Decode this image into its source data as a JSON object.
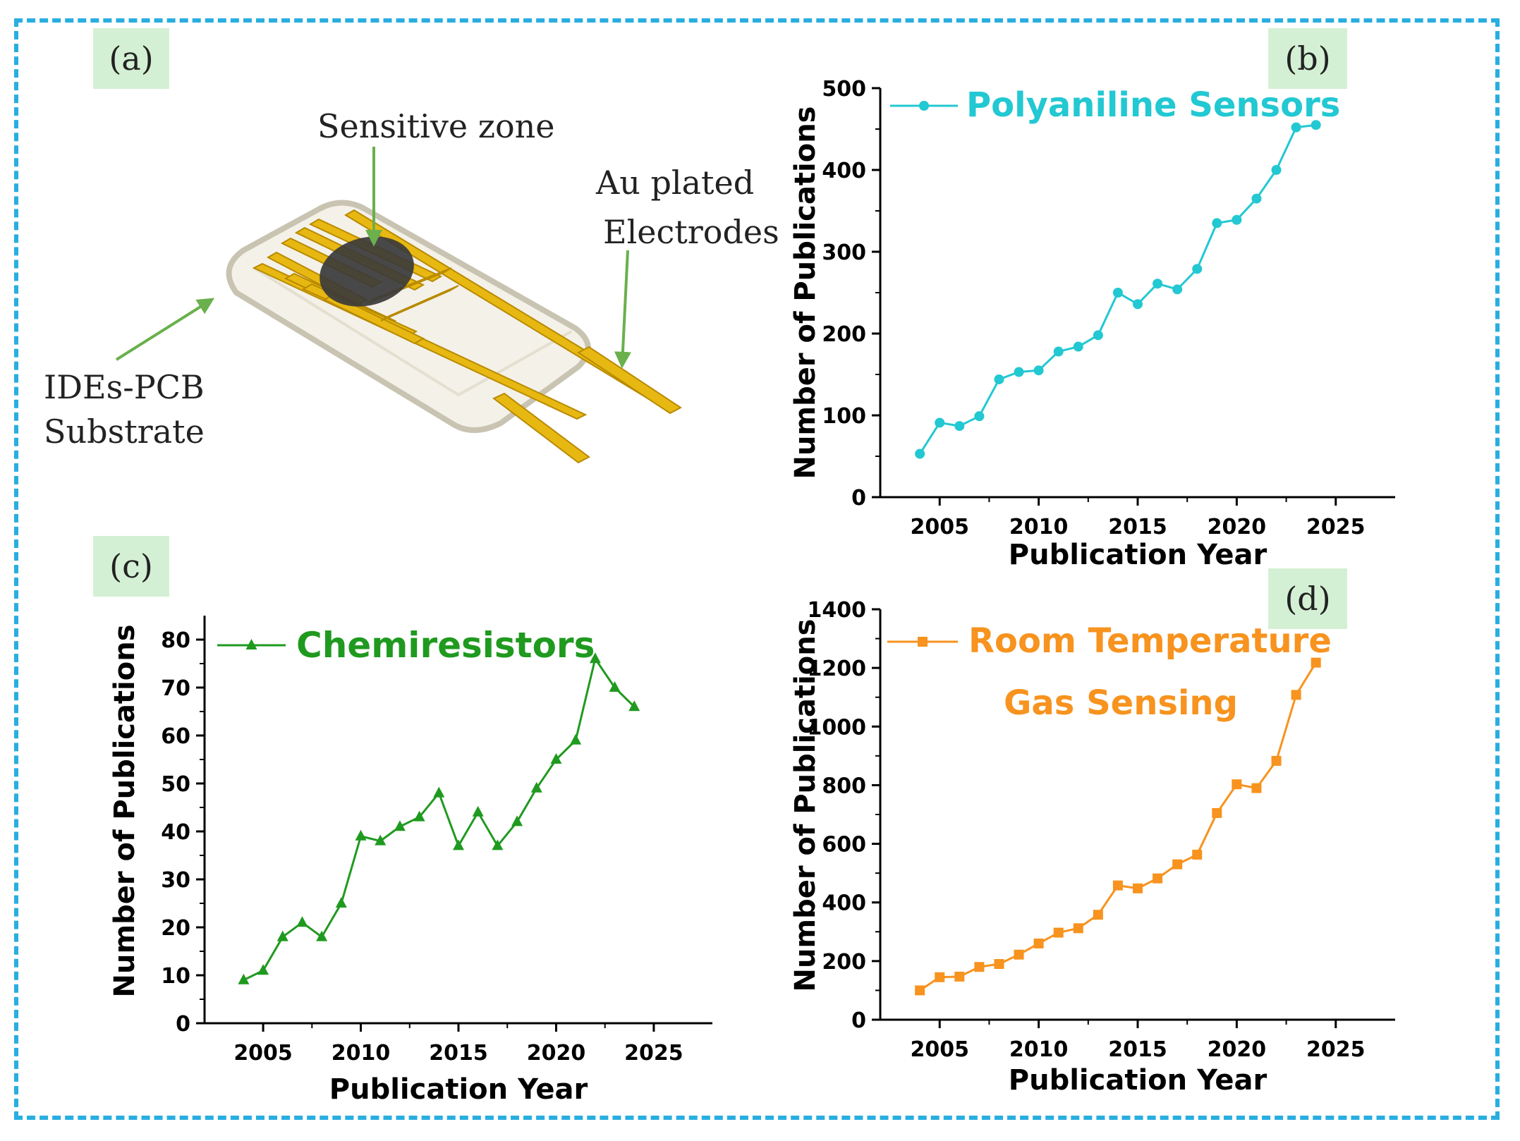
{
  "panels": {
    "a": {
      "tag": "(a)",
      "labels": {
        "sensitive_zone": "Sensitive zone",
        "au_line1": "Au plated",
        "au_line2": "Electrodes",
        "ides_line1": "IDEs-PCB",
        "ides_line2": "Substrate"
      },
      "colors": {
        "electrode": "#e8b812",
        "substrate": "#f2efe4",
        "film": "#3a3a3a",
        "arrow": "#6ab04c"
      }
    },
    "b": {
      "tag": "(b)"
    },
    "c": {
      "tag": "(c)"
    },
    "d": {
      "tag": "(d)"
    }
  },
  "chart_data": [
    {
      "id": "b",
      "type": "line",
      "title": "",
      "xlabel": "Publication Year",
      "ylabel": "Number of Publications",
      "xlim": [
        2002,
        2028
      ],
      "ylim": [
        0,
        500
      ],
      "xticks": [
        2005,
        2010,
        2015,
        2020,
        2025
      ],
      "yticks": [
        0,
        100,
        200,
        300,
        400,
        500
      ],
      "legend": {
        "position": "top",
        "lines": [
          "Polyaniline Sensors"
        ]
      },
      "color": "#22c8d2",
      "marker": "circle",
      "x": [
        2004,
        2005,
        2006,
        2007,
        2008,
        2009,
        2010,
        2011,
        2012,
        2013,
        2014,
        2015,
        2016,
        2017,
        2018,
        2019,
        2020,
        2021,
        2022,
        2023,
        2024
      ],
      "values": [
        53,
        91,
        87,
        99,
        144,
        153,
        155,
        178,
        184,
        198,
        250,
        236,
        261,
        254,
        279,
        335,
        339,
        365,
        400,
        452,
        455
      ]
    },
    {
      "id": "c",
      "type": "line",
      "title": "",
      "xlabel": "Publication Year",
      "ylabel": "Number of Publications",
      "xlim": [
        2002,
        2028
      ],
      "ylim": [
        0,
        85
      ],
      "xticks": [
        2005,
        2010,
        2015,
        2020,
        2025
      ],
      "yticks": [
        0,
        10,
        20,
        30,
        40,
        50,
        60,
        70,
        80
      ],
      "legend": {
        "position": "top-left",
        "lines": [
          "Chemiresistors"
        ]
      },
      "color": "#1f9a1f",
      "marker": "triangle",
      "x": [
        2004,
        2005,
        2006,
        2007,
        2008,
        2009,
        2010,
        2011,
        2012,
        2013,
        2014,
        2015,
        2016,
        2017,
        2018,
        2019,
        2020,
        2021,
        2022,
        2023,
        2024
      ],
      "values": [
        9,
        11,
        18,
        21,
        18,
        25,
        39,
        38,
        41,
        43,
        48,
        37,
        44,
        37,
        42,
        49,
        55,
        59,
        76,
        70,
        66
      ]
    },
    {
      "id": "d",
      "type": "line",
      "title": "",
      "xlabel": "Publication Year",
      "ylabel": "Number of Publications",
      "xlim": [
        2002,
        2028
      ],
      "ylim": [
        0,
        1400
      ],
      "xticks": [
        2005,
        2010,
        2015,
        2020,
        2025
      ],
      "yticks": [
        0,
        200,
        400,
        600,
        800,
        1000,
        1200,
        1400
      ],
      "legend": {
        "position": "top",
        "lines": [
          "Room Temperature",
          "Gas Sensing"
        ]
      },
      "color": "#f7931e",
      "marker": "square",
      "x": [
        2004,
        2005,
        2006,
        2007,
        2008,
        2009,
        2010,
        2011,
        2012,
        2013,
        2014,
        2015,
        2016,
        2017,
        2018,
        2019,
        2020,
        2021,
        2022,
        2023,
        2024
      ],
      "values": [
        100,
        145,
        147,
        180,
        190,
        222,
        260,
        297,
        312,
        358,
        458,
        448,
        482,
        530,
        563,
        705,
        803,
        790,
        883,
        1108,
        1218
      ]
    }
  ]
}
